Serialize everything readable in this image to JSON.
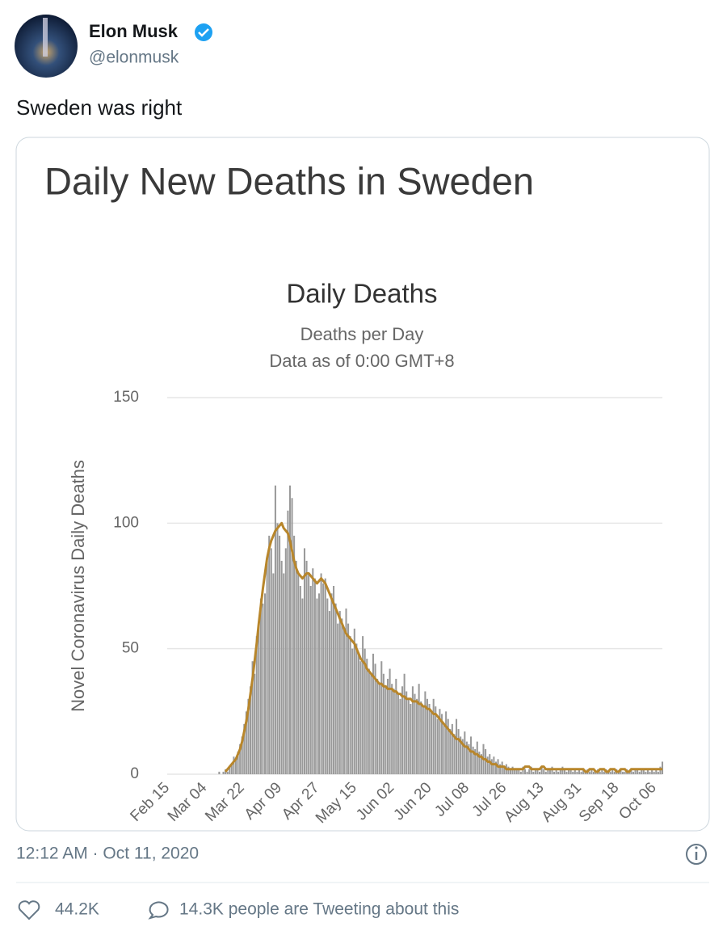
{
  "header": {
    "name": "Elon Musk",
    "handle": "@elonmusk"
  },
  "tweet": {
    "text": "Sweden was right",
    "card_title": "Daily New Deaths in Sweden"
  },
  "chart_data": {
    "type": "bar",
    "title": "Daily Deaths",
    "subtitle": "Deaths per Day",
    "note": "Data as of 0:00 GMT+8",
    "y_label": "Novel Coronavirus Daily Deaths",
    "ylim": [
      0,
      150
    ],
    "yticks": [
      0,
      50,
      100,
      150
    ],
    "grid": true,
    "categories": [
      "Feb 15",
      null,
      null,
      null,
      null,
      null,
      null,
      null,
      null,
      null,
      null,
      null,
      null,
      null,
      null,
      null,
      null,
      null,
      "Mar 04",
      null,
      null,
      null,
      null,
      null,
      null,
      null,
      null,
      null,
      null,
      null,
      null,
      null,
      null,
      null,
      null,
      null,
      "Mar 22",
      null,
      null,
      null,
      null,
      null,
      null,
      null,
      null,
      null,
      null,
      null,
      null,
      null,
      null,
      null,
      null,
      null,
      "Apr 09",
      null,
      null,
      null,
      null,
      null,
      null,
      null,
      null,
      null,
      null,
      null,
      null,
      null,
      null,
      null,
      null,
      null,
      "Apr 27",
      null,
      null,
      null,
      null,
      null,
      null,
      null,
      null,
      null,
      null,
      null,
      null,
      null,
      null,
      null,
      null,
      null,
      "May 15",
      null,
      null,
      null,
      null,
      null,
      null,
      null,
      null,
      null,
      null,
      null,
      null,
      null,
      null,
      null,
      null,
      null,
      "Jun 02",
      null,
      null,
      null,
      null,
      null,
      null,
      null,
      null,
      null,
      null,
      null,
      null,
      null,
      null,
      null,
      null,
      null,
      "Jun 20",
      null,
      null,
      null,
      null,
      null,
      null,
      null,
      null,
      null,
      null,
      null,
      null,
      null,
      null,
      null,
      null,
      null,
      "Jul 08",
      null,
      null,
      null,
      null,
      null,
      null,
      null,
      null,
      null,
      null,
      null,
      null,
      null,
      null,
      null,
      null,
      null,
      "Jul 26",
      null,
      null,
      null,
      null,
      null,
      null,
      null,
      null,
      null,
      null,
      null,
      null,
      null,
      null,
      null,
      null,
      null,
      "Aug 13",
      null,
      null,
      null,
      null,
      null,
      null,
      null,
      null,
      null,
      null,
      null,
      null,
      null,
      null,
      null,
      null,
      null,
      "Aug 31",
      null,
      null,
      null,
      null,
      null,
      null,
      null,
      null,
      null,
      null,
      null,
      null,
      null,
      null,
      null,
      null,
      null,
      "Sep 18",
      null,
      null,
      null,
      null,
      null,
      null,
      null,
      null,
      null,
      null,
      null,
      null,
      null,
      null,
      null,
      null,
      null,
      "Oct 06",
      null,
      null,
      null,
      null
    ],
    "series": [
      {
        "type": "bar",
        "color": "#9a9a9a",
        "values": [
          0,
          0,
          0,
          0,
          0,
          0,
          0,
          0,
          0,
          0,
          0,
          0,
          0,
          0,
          0,
          0,
          0,
          0,
          0,
          0,
          0,
          0,
          0,
          0,
          0,
          1,
          0,
          1,
          2,
          1,
          3,
          4,
          7,
          6,
          9,
          12,
          15,
          20,
          25,
          30,
          35,
          45,
          40,
          55,
          60,
          70,
          68,
          72,
          85,
          95,
          90,
          80,
          115,
          100,
          95,
          85,
          80,
          90,
          105,
          115,
          110,
          95,
          85,
          80,
          75,
          70,
          90,
          85,
          80,
          75,
          82,
          78,
          70,
          72,
          80,
          76,
          78,
          70,
          65,
          72,
          75,
          68,
          60,
          65,
          62,
          58,
          66,
          60,
          55,
          50,
          58,
          52,
          48,
          45,
          55,
          50,
          46,
          42,
          40,
          48,
          44,
          38,
          36,
          45,
          40,
          35,
          38,
          42,
          36,
          34,
          38,
          32,
          30,
          35,
          40,
          33,
          30,
          28,
          35,
          32,
          30,
          36,
          29,
          27,
          33,
          30,
          28,
          25,
          30,
          27,
          22,
          26,
          24,
          20,
          25,
          22,
          18,
          20,
          16,
          22,
          18,
          15,
          14,
          17,
          13,
          12,
          15,
          11,
          10,
          13,
          9,
          8,
          12,
          10,
          7,
          8,
          6,
          7,
          5,
          6,
          4,
          5,
          3,
          4,
          3,
          2,
          3,
          2,
          2,
          2,
          1,
          3,
          2,
          1,
          2,
          3,
          1,
          2,
          2,
          1,
          3,
          2,
          1,
          2,
          2,
          3,
          1,
          2,
          1,
          2,
          3,
          2,
          1,
          2,
          2,
          1,
          2,
          1,
          2,
          1,
          2,
          1,
          2,
          1,
          2,
          1,
          1,
          2,
          1,
          2,
          1,
          2,
          1,
          1,
          2,
          1,
          2,
          1,
          2,
          1,
          1,
          2,
          1,
          2,
          1,
          2,
          2,
          1,
          2,
          2,
          1,
          2,
          1,
          2,
          1,
          2,
          1,
          3,
          5
        ]
      },
      {
        "type": "line",
        "color": "#b8862b",
        "values": [
          null,
          null,
          null,
          null,
          null,
          null,
          null,
          null,
          null,
          null,
          null,
          null,
          null,
          null,
          null,
          null,
          null,
          null,
          null,
          null,
          null,
          null,
          null,
          null,
          null,
          null,
          null,
          null,
          1,
          2,
          3,
          4,
          5,
          6,
          8,
          10,
          13,
          17,
          21,
          26,
          32,
          38,
          45,
          52,
          60,
          67,
          74,
          80,
          86,
          90,
          93,
          95,
          97,
          98,
          99,
          100,
          98,
          97,
          96,
          93,
          89,
          85,
          82,
          80,
          79,
          78,
          79,
          80,
          80,
          79,
          78,
          77,
          76,
          77,
          78,
          77,
          76,
          74,
          72,
          70,
          68,
          66,
          64,
          62,
          60,
          58,
          56,
          55,
          54,
          53,
          52,
          50,
          48,
          46,
          45,
          44,
          42,
          41,
          40,
          39,
          38,
          37,
          36,
          36,
          35,
          35,
          34,
          34,
          34,
          33,
          33,
          32,
          32,
          31,
          31,
          30,
          30,
          30,
          29,
          29,
          29,
          28,
          28,
          27,
          27,
          26,
          26,
          25,
          24,
          24,
          23,
          22,
          21,
          20,
          19,
          18,
          17,
          16,
          15,
          14,
          14,
          13,
          12,
          11,
          11,
          10,
          9,
          9,
          8,
          8,
          7,
          7,
          6,
          6,
          5,
          5,
          4,
          4,
          4,
          3,
          3,
          3,
          3,
          2,
          2,
          2,
          2,
          2,
          2,
          2,
          2,
          2,
          3,
          3,
          3,
          2,
          2,
          2,
          2,
          2,
          3,
          3,
          2,
          2,
          2,
          2,
          2,
          2,
          2,
          2,
          2,
          2,
          2,
          2,
          2,
          2,
          2,
          2,
          2,
          2,
          2,
          1,
          1,
          2,
          2,
          2,
          1,
          1,
          2,
          2,
          2,
          1,
          1,
          2,
          2,
          2,
          1,
          1,
          2,
          2,
          2,
          1,
          1,
          2,
          2,
          2,
          2,
          2,
          2,
          2,
          2,
          2,
          2,
          2,
          2,
          2,
          2,
          2,
          2
        ]
      }
    ]
  },
  "footer": {
    "timestamp": "12:12 AM · Oct 11, 2020",
    "likes": "44.2K",
    "tweeting": "14.3K people are Tweeting about this"
  }
}
